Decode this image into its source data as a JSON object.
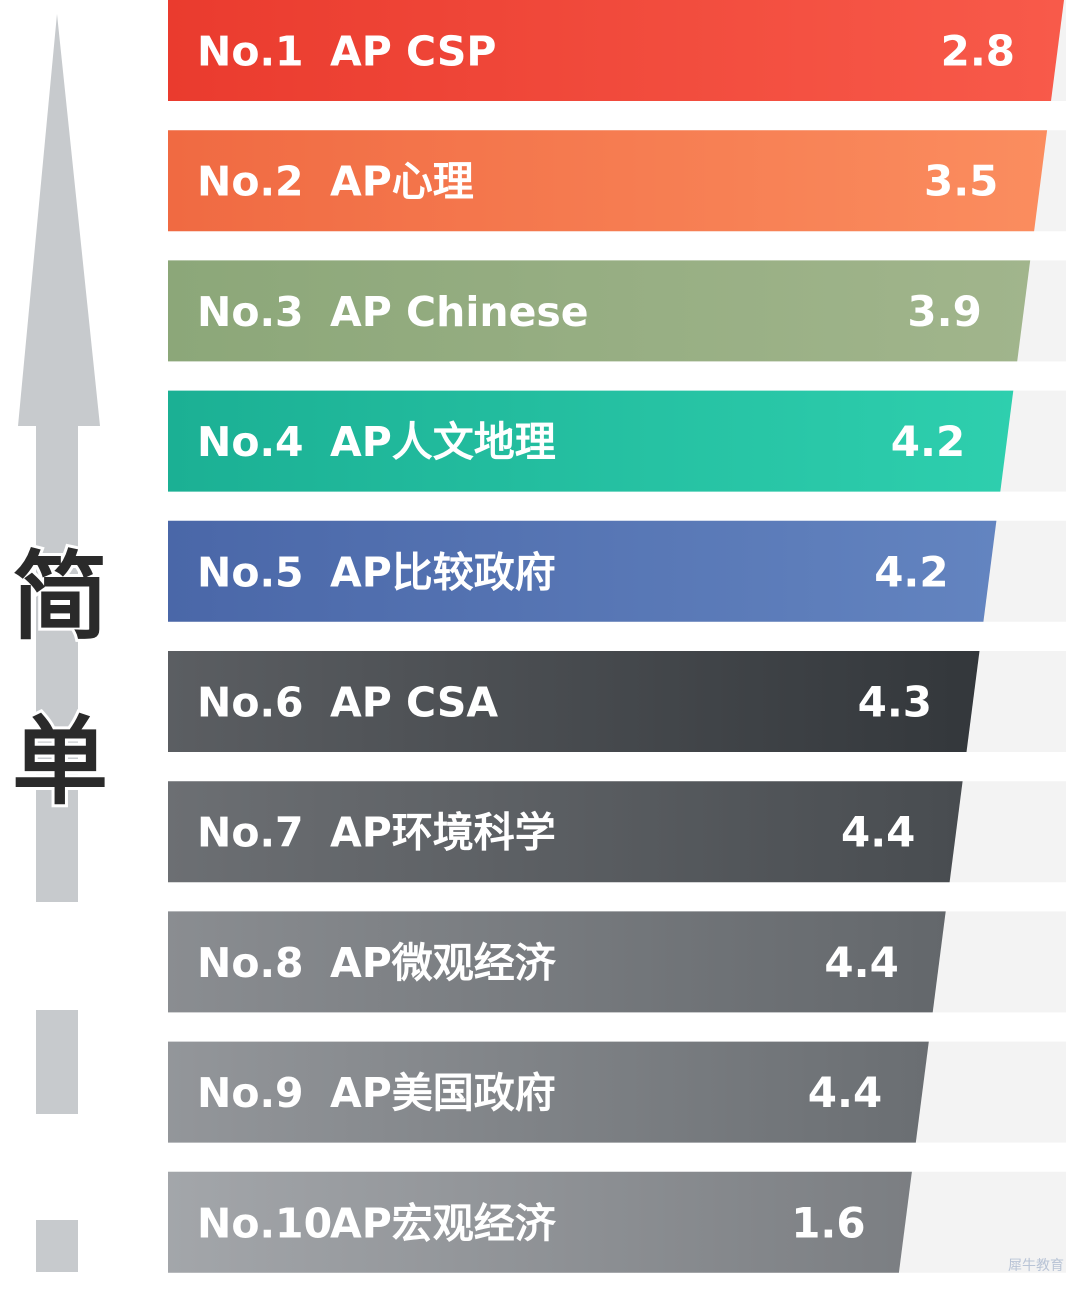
{
  "side_label": [
    "简",
    "单"
  ],
  "watermark": "犀牛教育",
  "chart_data": {
    "type": "bar",
    "orientation": "horizontal",
    "ranks": [
      "No.1",
      "No.2",
      "No.3",
      "No.4",
      "No.5",
      "No.6",
      "No.7",
      "No.8",
      "No.9",
      "No.10"
    ],
    "categories": [
      "AP CSP",
      "AP心理",
      "AP Chinese",
      "AP人文地理",
      "AP比较政府",
      "AP CSA",
      "AP环境科学",
      "AP微观经济",
      "AP美国政府",
      "AP宏观经济"
    ],
    "value_labels": [
      "2.8",
      "3.5",
      "3.9",
      "4.2",
      "4.2",
      "4.3",
      "4.4",
      "4.4",
      "4.4",
      "1.6"
    ],
    "colors": [
      [
        "#ea3b2e",
        "#f85a4a"
      ],
      [
        "#f06a42",
        "#fb8d5f"
      ],
      [
        "#8ca779",
        "#a1b58c"
      ],
      [
        "#1bb094",
        "#2ecfae"
      ],
      [
        "#4a67a8",
        "#6384c0"
      ],
      [
        "#5b5e62",
        "#33373b"
      ],
      [
        "#6c6f73",
        "#484c50"
      ],
      [
        "#8a8d91",
        "#63676b"
      ],
      [
        "#93969a",
        "#6a6e72"
      ],
      [
        "#a3a6aa",
        "#7b7e82"
      ]
    ],
    "legend": "none",
    "grid": false
  }
}
